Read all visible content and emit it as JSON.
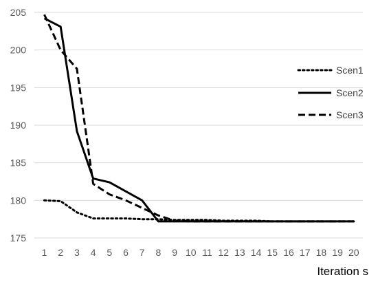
{
  "chart_data": {
    "type": "line",
    "title": "",
    "xlabel": "Iteration s",
    "ylabel": "",
    "x": [
      1,
      2,
      3,
      4,
      5,
      6,
      7,
      8,
      9,
      10,
      11,
      12,
      13,
      14,
      15,
      16,
      17,
      18,
      19,
      20
    ],
    "ylim": [
      175,
      205
    ],
    "yticks": [
      175,
      180,
      185,
      190,
      195,
      200,
      205
    ],
    "grid": true,
    "legend_position": "right",
    "series": [
      {
        "name": "Scen1",
        "style": "dotted",
        "values": [
          180.0,
          179.9,
          178.4,
          177.6,
          177.6,
          177.6,
          177.5,
          177.5,
          177.4,
          177.4,
          177.4,
          177.3,
          177.3,
          177.3,
          177.2,
          177.2,
          177.2,
          177.2,
          177.2,
          177.2
        ]
      },
      {
        "name": "Scen2",
        "style": "solid",
        "values": [
          204.2,
          203.1,
          189.2,
          182.9,
          182.4,
          181.2,
          180.0,
          177.2,
          177.2,
          177.2,
          177.2,
          177.2,
          177.2,
          177.2,
          177.2,
          177.2,
          177.2,
          177.2,
          177.2,
          177.2
        ]
      },
      {
        "name": "Scen3",
        "style": "dashed",
        "values": [
          204.7,
          200.0,
          197.5,
          182.2,
          180.8,
          180.0,
          179.0,
          178.0,
          177.3,
          177.2,
          177.2,
          177.2,
          177.2,
          177.2,
          177.2,
          177.2,
          177.2,
          177.2,
          177.2,
          177.2
        ]
      }
    ],
    "colors": {
      "series": "#000000",
      "grid": "#d9d9d9",
      "tick_text": "#595959"
    }
  }
}
